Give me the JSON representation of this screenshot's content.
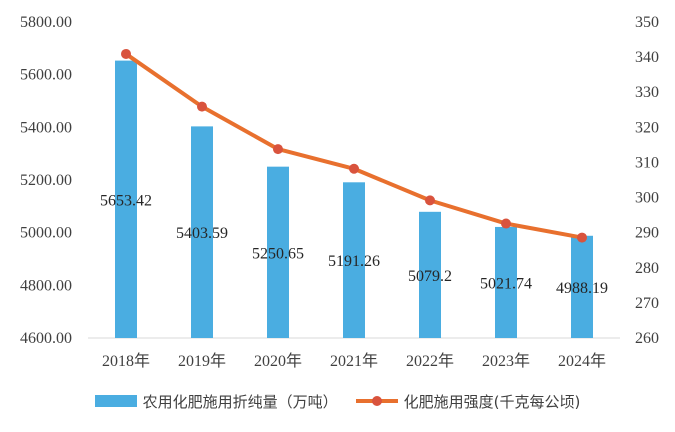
{
  "chart_data": {
    "type": "bar",
    "categories": [
      "2018年",
      "2019年",
      "2020年",
      "2021年",
      "2022年",
      "2023年",
      "2024年"
    ],
    "series": [
      {
        "name": "农用化肥施用折纯量（万吨）",
        "type": "bar",
        "axis": "left",
        "values": [
          5653.42,
          5403.59,
          5250.65,
          5191.26,
          5079.2,
          5021.74,
          4988.19
        ],
        "labels": [
          "5653.42",
          "5403.59",
          "5250.65",
          "5191.26",
          "5079.2",
          "5021.74",
          "4988.19"
        ]
      },
      {
        "name": "化肥施用强度(千克每公顷)",
        "type": "line",
        "axis": "right",
        "values": [
          340.9,
          325.9,
          313.8,
          308.2,
          299.2,
          292.6,
          288.6
        ]
      }
    ],
    "y_left": {
      "ylim": [
        4600,
        5800
      ],
      "ticks": [
        "4600.00",
        "4800.00",
        "5000.00",
        "5200.00",
        "5400.00",
        "5600.00",
        "5800.00"
      ]
    },
    "y_right": {
      "ylim": [
        260,
        350
      ],
      "ticks": [
        "260",
        "270",
        "280",
        "290",
        "300",
        "310",
        "320",
        "330",
        "340",
        "350"
      ]
    },
    "grid": false,
    "legend_position": "bottom",
    "colors": {
      "bar": "#4aade1",
      "line": "#e8702e",
      "marker": "#d9533d",
      "axis": "#d9d9d9",
      "text": "#404040"
    }
  }
}
